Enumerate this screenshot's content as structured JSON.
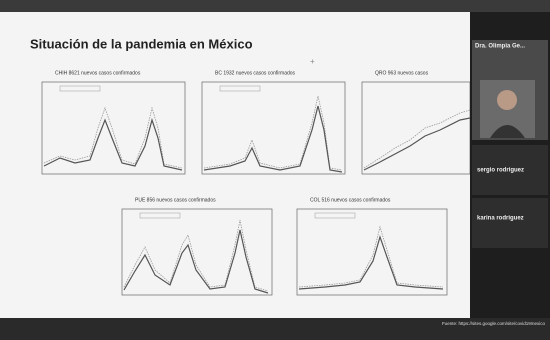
{
  "slide": {
    "title": "Situación de la pandemia en México",
    "charts": [
      {
        "heading": "CHIH  8621 nuevos casos confirmados"
      },
      {
        "heading": "BC  1932 nuevos casos confirmados"
      },
      {
        "heading": "QRO  963 nuevos casos"
      },
      {
        "heading": "PUE  856 nuevos casos confirmados"
      },
      {
        "heading": "COL  516 nuevos casos confirmados"
      }
    ],
    "source": "Fuente: https://sites.google.com/site/covid19mexico"
  },
  "participants": [
    {
      "name": "Dra. Olimpia Ge..."
    },
    {
      "name": "sergio rodriguez"
    },
    {
      "name": "karina rodriguez"
    }
  ]
}
